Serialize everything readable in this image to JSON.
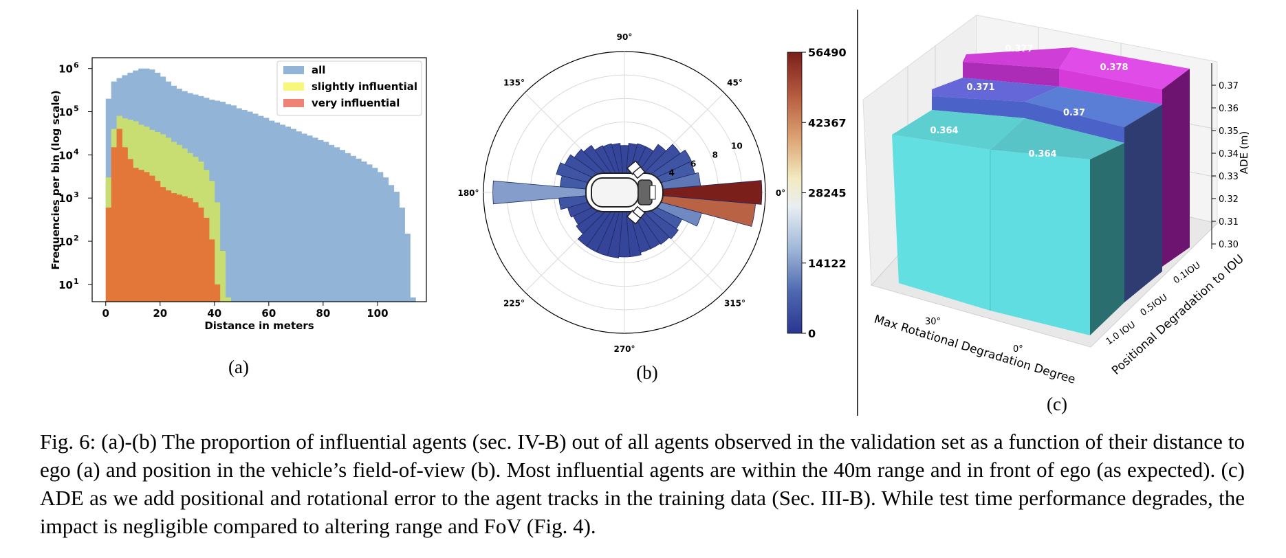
{
  "figure": {
    "caption": "Fig. 6: (a)-(b) The proportion of influential agents (sec. IV-B) out of all agents observed in the validation set as a function of their distance to ego (a) and position in the vehicle’s field-of-view (b). Most influential agents are within the 40m range and in front of ego (as expected). (c) ADE as we add positional and rotational error to the agent tracks in the training data (Sec. III-B). While test time performance degrades, the impact is negligible compared to altering range and FoV (Fig. 4)."
  },
  "chart_data": [
    {
      "id": "a",
      "sublabel": "(a)",
      "type": "area",
      "xlabel": "Distance in meters",
      "ylabel": "Frequencies per bin (log scale)",
      "xlim": [
        -5,
        118
      ],
      "ylim_log10": [
        0.6,
        6.25
      ],
      "log_y": true,
      "xticks": [
        0,
        20,
        40,
        60,
        80,
        100
      ],
      "yticks": [
        {
          "label": "10",
          "exp": "1",
          "value": 10
        },
        {
          "label": "10",
          "exp": "2",
          "value": 100
        },
        {
          "label": "10",
          "exp": "3",
          "value": 1000
        },
        {
          "label": "10",
          "exp": "4",
          "value": 10000
        },
        {
          "label": "10",
          "exp": "5",
          "value": 100000
        },
        {
          "label": "10",
          "exp": "6",
          "value": 1000000
        }
      ],
      "legend_position": "top-right",
      "bin_width": 2,
      "series": [
        {
          "name": "all",
          "color": "#92b4d6",
          "x": [
            0,
            2,
            4,
            6,
            8,
            10,
            12,
            14,
            16,
            18,
            20,
            22,
            24,
            26,
            28,
            30,
            32,
            34,
            36,
            38,
            40,
            42,
            44,
            46,
            48,
            50,
            52,
            54,
            56,
            58,
            60,
            62,
            64,
            66,
            68,
            70,
            72,
            74,
            76,
            78,
            80,
            82,
            84,
            86,
            88,
            90,
            92,
            94,
            96,
            98,
            100,
            102,
            104,
            106,
            108,
            110,
            112
          ],
          "values": [
            200000,
            500000,
            600000,
            700000,
            800000,
            900000,
            1000000,
            1000000,
            950000,
            800000,
            650000,
            500000,
            400000,
            340000,
            300000,
            270000,
            250000,
            230000,
            210000,
            190000,
            180000,
            170000,
            150000,
            140000,
            120000,
            110000,
            100000,
            90000,
            80000,
            72000,
            62000,
            56000,
            50000,
            45000,
            40000,
            35000,
            31000,
            28000,
            25000,
            22000,
            20000,
            17000,
            15000,
            13000,
            11000,
            9500,
            8200,
            7000,
            6000,
            5000,
            4000,
            3000,
            2000,
            1400,
            600,
            150,
            5
          ]
        },
        {
          "name": "slightly influential",
          "color": "#c8dd72",
          "x": [
            0,
            2,
            4,
            6,
            8,
            10,
            12,
            14,
            16,
            18,
            20,
            22,
            24,
            26,
            28,
            30,
            32,
            34,
            36,
            38,
            40,
            42,
            44
          ],
          "values": [
            3000,
            40000,
            80000,
            70000,
            65000,
            60000,
            50000,
            45000,
            38000,
            34000,
            30000,
            25000,
            20000,
            17000,
            14000,
            11000,
            9000,
            7000,
            4500,
            2500,
            800,
            60,
            5
          ]
        },
        {
          "name": "very influential",
          "color": "#e3773a",
          "x": [
            0,
            2,
            4,
            6,
            8,
            10,
            12,
            14,
            16,
            18,
            20,
            22,
            24,
            26,
            28,
            30,
            32,
            34,
            36,
            38,
            40
          ],
          "values": [
            600,
            15000,
            40000,
            15000,
            8000,
            5000,
            4500,
            4000,
            3300,
            2500,
            1800,
            1500,
            1300,
            1200,
            1100,
            1000,
            800,
            600,
            350,
            110,
            10
          ]
        }
      ],
      "legend_colors": [
        "#92b4d6",
        "#f8f77b",
        "#ef8277"
      ]
    },
    {
      "id": "b",
      "sublabel": "(b)",
      "type": "polar-bar",
      "angle_labels": [
        {
          "deg": 0,
          "label": "0°"
        },
        {
          "deg": 45,
          "label": "45°"
        },
        {
          "deg": 90,
          "label": "90°"
        },
        {
          "deg": 135,
          "label": "135°"
        },
        {
          "deg": 180,
          "label": "180°"
        },
        {
          "deg": 225,
          "label": "225°"
        },
        {
          "deg": 270,
          "label": "270°"
        },
        {
          "deg": 315,
          "label": "315°"
        }
      ],
      "radial_ticks": [
        {
          "r": 4,
          "label": "4"
        },
        {
          "r": 6,
          "label": "6"
        },
        {
          "r": 8,
          "label": "8"
        },
        {
          "r": 10,
          "label": "10"
        }
      ],
      "rmax": 12,
      "rmin": 0,
      "bin_width_deg": 10,
      "bins": [
        {
          "angle": 0,
          "radius": 11.7,
          "value": 56490
        },
        {
          "angle": 350,
          "radius": 11.2,
          "value": 47000
        },
        {
          "angle": 10,
          "radius": 6.5,
          "value": 10000
        },
        {
          "angle": 20,
          "radius": 6.2,
          "value": 6000
        },
        {
          "angle": 30,
          "radius": 6.3,
          "value": 5000
        },
        {
          "angle": 40,
          "radius": 5.8,
          "value": 4000
        },
        {
          "angle": 50,
          "radius": 5.0,
          "value": 3500
        },
        {
          "angle": 60,
          "radius": 4.3,
          "value": 3000
        },
        {
          "angle": 70,
          "radius": 4.3,
          "value": 3000
        },
        {
          "angle": 80,
          "radius": 4.2,
          "value": 2800
        },
        {
          "angle": 90,
          "radius": 4.0,
          "value": 2600
        },
        {
          "angle": 100,
          "radius": 4.2,
          "value": 2700
        },
        {
          "angle": 110,
          "radius": 4.3,
          "value": 2800
        },
        {
          "angle": 120,
          "radius": 4.4,
          "value": 3000
        },
        {
          "angle": 130,
          "radius": 4.9,
          "value": 3200
        },
        {
          "angle": 140,
          "radius": 5.2,
          "value": 3400
        },
        {
          "angle": 150,
          "radius": 5.6,
          "value": 4000
        },
        {
          "angle": 160,
          "radius": 6.0,
          "value": 5000
        },
        {
          "angle": 170,
          "radius": 5.5,
          "value": 6000
        },
        {
          "angle": 180,
          "radius": 11.2,
          "value": 14122
        },
        {
          "angle": 190,
          "radius": 5.6,
          "value": 5000
        },
        {
          "angle": 200,
          "radius": 5.0,
          "value": 3500
        },
        {
          "angle": 210,
          "radius": 4.8,
          "value": 3000
        },
        {
          "angle": 220,
          "radius": 5.0,
          "value": 2800
        },
        {
          "angle": 230,
          "radius": 5.6,
          "value": 2600
        },
        {
          "angle": 240,
          "radius": 5.6,
          "value": 2600
        },
        {
          "angle": 250,
          "radius": 5.6,
          "value": 2500
        },
        {
          "angle": 260,
          "radius": 5.6,
          "value": 2500
        },
        {
          "angle": 270,
          "radius": 5.5,
          "value": 2600
        },
        {
          "angle": 280,
          "radius": 5.5,
          "value": 2600
        },
        {
          "angle": 290,
          "radius": 5.3,
          "value": 2800
        },
        {
          "angle": 300,
          "radius": 5.3,
          "value": 3000
        },
        {
          "angle": 310,
          "radius": 5.4,
          "value": 3500
        },
        {
          "angle": 320,
          "radius": 5.6,
          "value": 4000
        },
        {
          "angle": 330,
          "radius": 5.4,
          "value": 6000
        },
        {
          "angle": 340,
          "radius": 6.8,
          "value": 12000
        }
      ],
      "colorbar": {
        "min": 0,
        "max": 56490,
        "ticks": [
          {
            "value": 0,
            "label": "0"
          },
          {
            "value": 14122,
            "label": "14122"
          },
          {
            "value": 28245,
            "label": "28245"
          },
          {
            "value": 42367,
            "label": "42367"
          },
          {
            "value": 56490,
            "label": "56490"
          }
        ],
        "colormap": "coolwarm-like"
      }
    },
    {
      "id": "c",
      "sublabel": "(c)",
      "type": "bar3d",
      "xlabel": "Max Rotational Degradation Degree",
      "ylabel": "Positional Degradation to IOU",
      "zlabel": "ADE (m)",
      "x_ticks": [
        "30°",
        "0°"
      ],
      "y_ticks": [
        "1.0 IOU",
        "0.5IOU",
        "0.1IOU"
      ],
      "z_ticks": [
        "0.30",
        "0.31",
        "0.32",
        "0.33",
        "0.34",
        "0.35",
        "0.36",
        "0.37"
      ],
      "zlim": [
        0.295,
        0.382
      ],
      "bars": [
        {
          "rotation": "30°",
          "position": "0.1IOU",
          "value": 0.377
        },
        {
          "rotation": "0°",
          "position": "0.1IOU",
          "value": 0.378
        },
        {
          "rotation": "30°",
          "position": "0.5IOU",
          "value": 0.371
        },
        {
          "rotation": "0°",
          "position": "0.5IOU",
          "value": 0.37
        },
        {
          "rotation": "30°",
          "position": "1.0 IOU",
          "value": 0.364
        },
        {
          "rotation": "0°",
          "position": "1.0 IOU",
          "value": 0.364
        }
      ],
      "bar_labels": [
        "0.377",
        "0.378",
        "0.371",
        "0.37",
        "0.364",
        "0.364"
      ],
      "row_colors": {
        "0.1IOU": "#d444dc",
        "0.5IOU": "#6d70e0",
        "1.0 IOU": "#5edfe1"
      }
    }
  ]
}
